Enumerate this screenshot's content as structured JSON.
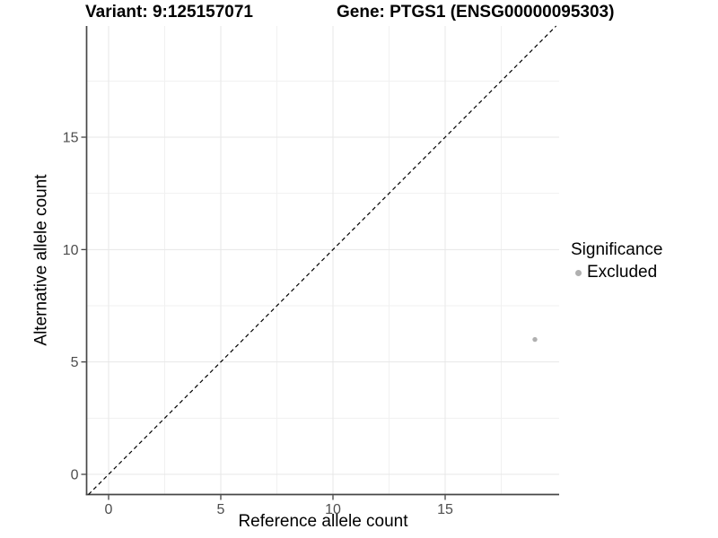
{
  "titles": {
    "variant": "Variant: 9:125157071",
    "gene": "Gene: PTGS1 (ENSG00000095303)"
  },
  "chart_data": {
    "type": "scatter",
    "title_left": "Variant: 9:125157071",
    "title_right": "Gene: PTGS1 (ENSG00000095303)",
    "xlabel": "Reference allele count",
    "ylabel": "Alternative allele count",
    "xlim": [
      -1,
      20.1
    ],
    "ylim": [
      -0.9,
      20
    ],
    "x_ticks": [
      0,
      5,
      10,
      15
    ],
    "y_ticks": [
      0,
      5,
      10,
      15
    ],
    "minor_gridlines": [
      2.5,
      7.5,
      12.5,
      17.5
    ],
    "grid": true,
    "series": [
      {
        "name": "Excluded",
        "color": "#b0b0b0",
        "points": [
          {
            "x": 19,
            "y": 6
          }
        ]
      }
    ],
    "reference_line": {
      "type": "identity y=x",
      "style": "dashed",
      "color": "#000000"
    },
    "legend": {
      "title": "Significance",
      "position": "right",
      "items": [
        {
          "label": "Excluded",
          "color": "#b0b0b0"
        }
      ]
    },
    "colors": {
      "axis_line": "#474747",
      "tick_mark": "#333333",
      "tick_label": "#4d4d4d",
      "grid_major": "#e7e7e7",
      "grid_minor": "#f1f1f1",
      "background": "#ffffff"
    }
  }
}
